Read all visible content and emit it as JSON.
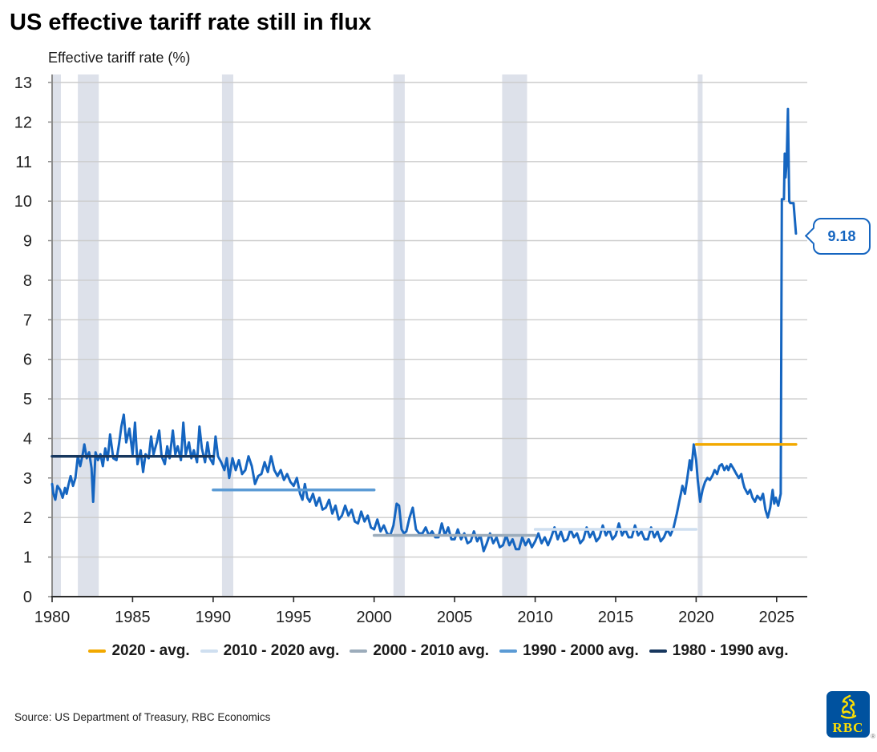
{
  "page": {
    "title": "US effective tariff rate still in flux",
    "source": "Source: US Department of Treasury, RBC Economics",
    "logo_text": "RBC",
    "registered_mark": "®"
  },
  "chart_data": {
    "type": "line",
    "title": "US effective tariff rate still in flux",
    "ylabel": "Effective tariff rate (%)",
    "xlabel": "",
    "ylim": [
      0,
      13.2
    ],
    "xlim": [
      1980,
      2026.9
    ],
    "yticks": [
      0,
      1,
      2,
      3,
      4,
      5,
      6,
      7,
      8,
      9,
      10,
      11,
      12,
      13
    ],
    "xticks": [
      1980,
      1985,
      1990,
      1995,
      2000,
      2005,
      2010,
      2015,
      2020,
      2025
    ],
    "grid": "horizontal",
    "legend_position": "bottom",
    "colors": {
      "band": "#dde1ea",
      "grid": "#cccccc",
      "x_axis": "#2b2b2b",
      "y_axis": "#8c8c8c",
      "callout": "#1565c0"
    },
    "series": [
      {
        "name": "Effective tariff rate (%)",
        "color": "#1565c0",
        "points": [
          [
            1980.0,
            2.85
          ],
          [
            1980.08,
            2.6
          ],
          [
            1980.2,
            2.45
          ],
          [
            1980.33,
            2.8
          ],
          [
            1980.5,
            2.7
          ],
          [
            1980.65,
            2.5
          ],
          [
            1980.8,
            2.75
          ],
          [
            1980.9,
            2.6
          ],
          [
            1981.0,
            2.8
          ],
          [
            1981.15,
            3.05
          ],
          [
            1981.3,
            2.8
          ],
          [
            1981.45,
            3.0
          ],
          [
            1981.6,
            3.55
          ],
          [
            1981.75,
            3.3
          ],
          [
            1981.9,
            3.6
          ],
          [
            1982.0,
            3.85
          ],
          [
            1982.15,
            3.5
          ],
          [
            1982.3,
            3.65
          ],
          [
            1982.45,
            3.25
          ],
          [
            1982.55,
            2.4
          ],
          [
            1982.7,
            3.65
          ],
          [
            1982.85,
            3.45
          ],
          [
            1983.0,
            3.6
          ],
          [
            1983.15,
            3.3
          ],
          [
            1983.3,
            3.75
          ],
          [
            1983.45,
            3.45
          ],
          [
            1983.6,
            4.1
          ],
          [
            1983.8,
            3.5
          ],
          [
            1984.0,
            3.45
          ],
          [
            1984.15,
            3.85
          ],
          [
            1984.3,
            4.3
          ],
          [
            1984.45,
            4.6
          ],
          [
            1984.6,
            3.9
          ],
          [
            1984.8,
            4.25
          ],
          [
            1985.0,
            3.6
          ],
          [
            1985.15,
            4.4
          ],
          [
            1985.3,
            3.35
          ],
          [
            1985.5,
            3.7
          ],
          [
            1985.65,
            3.15
          ],
          [
            1985.8,
            3.6
          ],
          [
            1986.0,
            3.5
          ],
          [
            1986.15,
            4.05
          ],
          [
            1986.3,
            3.6
          ],
          [
            1986.5,
            3.9
          ],
          [
            1986.65,
            4.2
          ],
          [
            1986.8,
            3.55
          ],
          [
            1987.0,
            3.35
          ],
          [
            1987.15,
            3.8
          ],
          [
            1987.3,
            3.5
          ],
          [
            1987.5,
            4.2
          ],
          [
            1987.65,
            3.6
          ],
          [
            1987.8,
            3.8
          ],
          [
            1988.0,
            3.45
          ],
          [
            1988.15,
            4.4
          ],
          [
            1988.3,
            3.6
          ],
          [
            1988.5,
            3.9
          ],
          [
            1988.65,
            3.5
          ],
          [
            1988.8,
            3.7
          ],
          [
            1989.0,
            3.4
          ],
          [
            1989.15,
            4.3
          ],
          [
            1989.3,
            3.75
          ],
          [
            1989.5,
            3.4
          ],
          [
            1989.65,
            3.9
          ],
          [
            1989.8,
            3.5
          ],
          [
            1990.0,
            3.35
          ],
          [
            1990.15,
            4.05
          ],
          [
            1990.3,
            3.55
          ],
          [
            1990.5,
            3.4
          ],
          [
            1990.7,
            3.2
          ],
          [
            1990.85,
            3.5
          ],
          [
            1991.0,
            3.0
          ],
          [
            1991.2,
            3.5
          ],
          [
            1991.4,
            3.2
          ],
          [
            1991.6,
            3.45
          ],
          [
            1991.8,
            3.1
          ],
          [
            1992.0,
            3.2
          ],
          [
            1992.2,
            3.55
          ],
          [
            1992.4,
            3.3
          ],
          [
            1992.6,
            2.85
          ],
          [
            1992.8,
            3.05
          ],
          [
            1993.0,
            3.1
          ],
          [
            1993.2,
            3.4
          ],
          [
            1993.4,
            3.15
          ],
          [
            1993.6,
            3.55
          ],
          [
            1993.8,
            3.2
          ],
          [
            1994.0,
            3.05
          ],
          [
            1994.2,
            3.2
          ],
          [
            1994.4,
            2.95
          ],
          [
            1994.6,
            3.1
          ],
          [
            1994.8,
            2.9
          ],
          [
            1995.0,
            2.8
          ],
          [
            1995.2,
            3.0
          ],
          [
            1995.4,
            2.6
          ],
          [
            1995.55,
            2.45
          ],
          [
            1995.7,
            2.85
          ],
          [
            1995.85,
            2.5
          ],
          [
            1996.0,
            2.4
          ],
          [
            1996.2,
            2.6
          ],
          [
            1996.4,
            2.3
          ],
          [
            1996.6,
            2.5
          ],
          [
            1996.8,
            2.2
          ],
          [
            1997.0,
            2.25
          ],
          [
            1997.2,
            2.45
          ],
          [
            1997.4,
            2.1
          ],
          [
            1997.6,
            2.3
          ],
          [
            1997.8,
            1.95
          ],
          [
            1998.0,
            2.05
          ],
          [
            1998.2,
            2.3
          ],
          [
            1998.4,
            2.05
          ],
          [
            1998.6,
            2.2
          ],
          [
            1998.8,
            1.9
          ],
          [
            1999.0,
            1.85
          ],
          [
            1999.2,
            2.15
          ],
          [
            1999.4,
            1.9
          ],
          [
            1999.6,
            2.05
          ],
          [
            1999.8,
            1.75
          ],
          [
            2000.0,
            1.7
          ],
          [
            2000.2,
            1.95
          ],
          [
            2000.4,
            1.65
          ],
          [
            2000.6,
            1.8
          ],
          [
            2000.8,
            1.6
          ],
          [
            2001.0,
            1.55
          ],
          [
            2001.2,
            1.8
          ],
          [
            2001.4,
            2.35
          ],
          [
            2001.55,
            2.3
          ],
          [
            2001.7,
            1.7
          ],
          [
            2001.85,
            1.6
          ],
          [
            2002.0,
            1.65
          ],
          [
            2002.2,
            2.0
          ],
          [
            2002.4,
            2.25
          ],
          [
            2002.6,
            1.7
          ],
          [
            2002.8,
            1.6
          ],
          [
            2003.0,
            1.6
          ],
          [
            2003.2,
            1.75
          ],
          [
            2003.4,
            1.55
          ],
          [
            2003.6,
            1.65
          ],
          [
            2003.8,
            1.5
          ],
          [
            2004.0,
            1.5
          ],
          [
            2004.2,
            1.85
          ],
          [
            2004.4,
            1.55
          ],
          [
            2004.6,
            1.75
          ],
          [
            2004.8,
            1.45
          ],
          [
            2005.0,
            1.45
          ],
          [
            2005.2,
            1.7
          ],
          [
            2005.4,
            1.45
          ],
          [
            2005.6,
            1.6
          ],
          [
            2005.8,
            1.35
          ],
          [
            2006.0,
            1.4
          ],
          [
            2006.2,
            1.65
          ],
          [
            2006.4,
            1.4
          ],
          [
            2006.6,
            1.55
          ],
          [
            2006.8,
            1.15
          ],
          [
            2007.0,
            1.35
          ],
          [
            2007.2,
            1.6
          ],
          [
            2007.4,
            1.35
          ],
          [
            2007.6,
            1.5
          ],
          [
            2007.8,
            1.25
          ],
          [
            2008.0,
            1.3
          ],
          [
            2008.2,
            1.55
          ],
          [
            2008.4,
            1.3
          ],
          [
            2008.6,
            1.45
          ],
          [
            2008.8,
            1.2
          ],
          [
            2009.0,
            1.2
          ],
          [
            2009.2,
            1.5
          ],
          [
            2009.4,
            1.3
          ],
          [
            2009.6,
            1.45
          ],
          [
            2009.8,
            1.25
          ],
          [
            2010.0,
            1.4
          ],
          [
            2010.2,
            1.6
          ],
          [
            2010.4,
            1.35
          ],
          [
            2010.6,
            1.5
          ],
          [
            2010.8,
            1.3
          ],
          [
            2011.0,
            1.5
          ],
          [
            2011.2,
            1.75
          ],
          [
            2011.4,
            1.45
          ],
          [
            2011.6,
            1.65
          ],
          [
            2011.8,
            1.4
          ],
          [
            2012.0,
            1.45
          ],
          [
            2012.2,
            1.7
          ],
          [
            2012.4,
            1.5
          ],
          [
            2012.6,
            1.6
          ],
          [
            2012.8,
            1.35
          ],
          [
            2013.0,
            1.45
          ],
          [
            2013.2,
            1.75
          ],
          [
            2013.4,
            1.5
          ],
          [
            2013.6,
            1.65
          ],
          [
            2013.8,
            1.4
          ],
          [
            2014.0,
            1.5
          ],
          [
            2014.2,
            1.8
          ],
          [
            2014.4,
            1.55
          ],
          [
            2014.6,
            1.7
          ],
          [
            2014.8,
            1.45
          ],
          [
            2015.0,
            1.55
          ],
          [
            2015.2,
            1.85
          ],
          [
            2015.4,
            1.55
          ],
          [
            2015.6,
            1.7
          ],
          [
            2015.8,
            1.5
          ],
          [
            2016.0,
            1.5
          ],
          [
            2016.2,
            1.8
          ],
          [
            2016.4,
            1.55
          ],
          [
            2016.6,
            1.65
          ],
          [
            2016.8,
            1.45
          ],
          [
            2017.0,
            1.45
          ],
          [
            2017.2,
            1.75
          ],
          [
            2017.4,
            1.5
          ],
          [
            2017.6,
            1.65
          ],
          [
            2017.8,
            1.4
          ],
          [
            2018.0,
            1.5
          ],
          [
            2018.2,
            1.7
          ],
          [
            2018.4,
            1.55
          ],
          [
            2018.6,
            1.75
          ],
          [
            2018.8,
            2.1
          ],
          [
            2019.0,
            2.5
          ],
          [
            2019.15,
            2.8
          ],
          [
            2019.3,
            2.6
          ],
          [
            2019.45,
            3.0
          ],
          [
            2019.6,
            3.45
          ],
          [
            2019.7,
            3.2
          ],
          [
            2019.85,
            3.85
          ],
          [
            2020.0,
            3.45
          ],
          [
            2020.1,
            2.95
          ],
          [
            2020.25,
            2.4
          ],
          [
            2020.4,
            2.7
          ],
          [
            2020.55,
            2.9
          ],
          [
            2020.7,
            3.0
          ],
          [
            2020.85,
            2.95
          ],
          [
            2021.0,
            3.05
          ],
          [
            2021.15,
            3.2
          ],
          [
            2021.3,
            3.1
          ],
          [
            2021.45,
            3.3
          ],
          [
            2021.6,
            3.35
          ],
          [
            2021.75,
            3.2
          ],
          [
            2021.9,
            3.3
          ],
          [
            2022.0,
            3.2
          ],
          [
            2022.15,
            3.35
          ],
          [
            2022.3,
            3.25
          ],
          [
            2022.5,
            3.1
          ],
          [
            2022.65,
            3.0
          ],
          [
            2022.8,
            3.1
          ],
          [
            2022.9,
            2.9
          ],
          [
            2023.0,
            2.75
          ],
          [
            2023.2,
            2.6
          ],
          [
            2023.35,
            2.7
          ],
          [
            2023.5,
            2.5
          ],
          [
            2023.65,
            2.4
          ],
          [
            2023.8,
            2.55
          ],
          [
            2024.0,
            2.45
          ],
          [
            2024.15,
            2.6
          ],
          [
            2024.3,
            2.2
          ],
          [
            2024.45,
            2.0
          ],
          [
            2024.6,
            2.25
          ],
          [
            2024.75,
            2.7
          ],
          [
            2024.85,
            2.35
          ],
          [
            2024.95,
            2.5
          ],
          [
            2025.1,
            2.3
          ],
          [
            2025.25,
            2.6
          ],
          [
            2025.32,
            10.05
          ],
          [
            2025.45,
            10.05
          ],
          [
            2025.5,
            11.2
          ],
          [
            2025.55,
            10.6
          ],
          [
            2025.62,
            11.0
          ],
          [
            2025.7,
            12.33
          ],
          [
            2025.78,
            10.0
          ],
          [
            2025.85,
            9.95
          ],
          [
            2026.05,
            9.95
          ],
          [
            2026.2,
            9.18
          ]
        ]
      }
    ],
    "avg_lines": [
      {
        "name": "1980 - 1990 avg.",
        "color": "#17375e",
        "x1": 1980.0,
        "x2": 1990.0,
        "y": 3.55
      },
      {
        "name": "1990 - 2000 avg.",
        "color": "#5b9bd5",
        "x1": 1990.0,
        "x2": 2000.0,
        "y": 2.7
      },
      {
        "name": "2000 - 2010 avg.",
        "color": "#9cacbb",
        "x1": 2000.0,
        "x2": 2010.0,
        "y": 1.55
      },
      {
        "name": "2010 - 2020 avg.",
        "color": "#cfdff0",
        "x1": 2010.0,
        "x2": 2020.0,
        "y": 1.7
      },
      {
        "name": "2020 - avg.",
        "color": "#f2a900",
        "x1": 2020.0,
        "x2": 2026.2,
        "y": 3.85
      }
    ],
    "recession_bands": [
      {
        "x1": 1980.0,
        "x2": 1980.55
      },
      {
        "x1": 1981.6,
        "x2": 1982.9
      },
      {
        "x1": 1990.55,
        "x2": 1991.25
      },
      {
        "x1": 2001.2,
        "x2": 2001.9
      },
      {
        "x1": 2007.95,
        "x2": 2009.5
      },
      {
        "x1": 2020.1,
        "x2": 2020.4
      }
    ],
    "callout": {
      "label": "9.18",
      "x": 2026.2,
      "y": 9.18
    },
    "legend": [
      {
        "label": "2020 - avg.",
        "color": "#f2a900"
      },
      {
        "label": "2010 - 2020 avg.",
        "color": "#cfdff0"
      },
      {
        "label": "2000 - 2010 avg.",
        "color": "#9cacbb"
      },
      {
        "label": "1990 - 2000 avg.",
        "color": "#5b9bd5"
      },
      {
        "label": "1980 - 1990 avg.",
        "color": "#17375e"
      }
    ]
  }
}
